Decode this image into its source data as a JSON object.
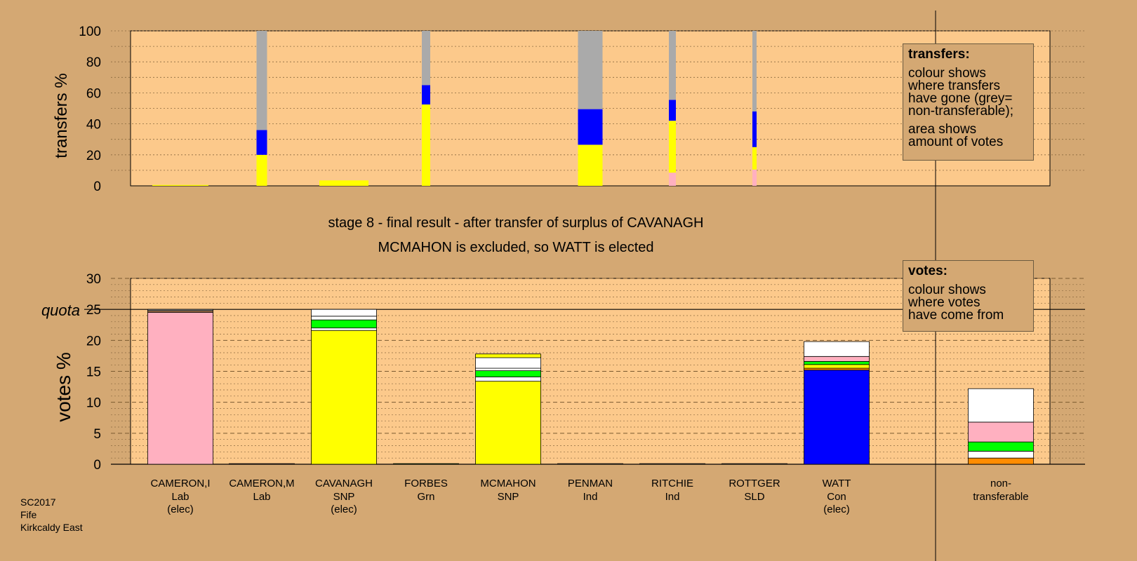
{
  "colors": {
    "background": "#d4a873",
    "plot_area": "#fcc98b",
    "yellow": "#ffff00",
    "pink": "#ffb0c0",
    "blue": "#0000ff",
    "green": "#00ff00",
    "white": "#ffffff",
    "grey": "#aaaaaa",
    "orange": "#ff8c00",
    "brown": "#a0704a"
  },
  "stage_title_line1": "stage 8 - final result - after transfer of surplus of CAVANAGH",
  "stage_title_line2": "MCMAHON is excluded, so WATT is elected",
  "transfers_legend": {
    "title": "transfers:",
    "line1": "colour shows\nwhere transfers\nhave gone (grey=\nnon-transferable);",
    "line2": "area shows\namount of votes"
  },
  "votes_legend": {
    "title": "votes:",
    "line1": "colour shows\nwhere votes\nhave come from"
  },
  "footer": {
    "line1": "SC2017",
    "line2": "Fife",
    "line3": "Kirkcaldy East"
  },
  "chart_data": [
    {
      "type": "bar",
      "stacked": true,
      "ylabel": "transfers %",
      "ylim": [
        0,
        100
      ],
      "yticks": [
        0,
        20,
        40,
        60,
        80,
        100
      ],
      "grid": true,
      "categories": [
        "CAMERON,I",
        "CAMERON,M",
        "CAVANAGH",
        "FORBES",
        "MCMAHON",
        "PENMAN",
        "RITCHIE",
        "ROTTGER",
        "WATT",
        "non-transferable"
      ],
      "bars": [
        {
          "category": "CAMERON,I",
          "width_votes_pct": 8,
          "segments": [
            {
              "color": "yellow",
              "value": 0.6
            }
          ]
        },
        {
          "category": "CAMERON,M",
          "width_votes_pct": 1.5,
          "segments": [
            {
              "color": "yellow",
              "value": 20
            },
            {
              "color": "blue",
              "value": 16
            },
            {
              "color": "grey",
              "value": 64
            }
          ]
        },
        {
          "category": "CAVANAGH",
          "width_votes_pct": 7,
          "segments": [
            {
              "color": "yellow",
              "value": 3.5
            }
          ]
        },
        {
          "category": "FORBES",
          "width_votes_pct": 1.2,
          "segments": [
            {
              "color": "yellow",
              "value": 52.5
            },
            {
              "color": "blue",
              "value": 12.5
            },
            {
              "color": "grey",
              "value": 35
            }
          ]
        },
        {
          "category": "PENMAN",
          "width_votes_pct": 3.5,
          "segments": [
            {
              "color": "yellow",
              "value": 26.5
            },
            {
              "color": "blue",
              "value": 23
            },
            {
              "color": "grey",
              "value": 50.5
            }
          ]
        },
        {
          "category": "RITCHIE",
          "width_votes_pct": 1,
          "segments": [
            {
              "color": "pink",
              "value": 8.5
            },
            {
              "color": "yellow",
              "value": 33.5
            },
            {
              "color": "blue",
              "value": 13.5
            },
            {
              "color": "grey",
              "value": 44.5
            }
          ]
        },
        {
          "category": "ROTTGER",
          "width_votes_pct": 0.6,
          "segments": [
            {
              "color": "pink",
              "value": 10.5
            },
            {
              "color": "yellow",
              "value": 14.5
            },
            {
              "color": "blue",
              "value": 23
            },
            {
              "color": "grey",
              "value": 52
            }
          ]
        }
      ]
    },
    {
      "type": "bar",
      "stacked": true,
      "ylabel": "votes %",
      "ylim": [
        0,
        30
      ],
      "yticks": [
        0,
        5,
        10,
        15,
        20,
        25,
        30
      ],
      "quota": 25,
      "quota_label": "quota",
      "grid": true,
      "candidates": [
        {
          "name": "CAMERON,I",
          "party": "Lab",
          "status": "(elec)",
          "segments": [
            {
              "color": "pink",
              "value": 24.5
            },
            {
              "color": "brown",
              "value": 0.3
            },
            {
              "color": "grey",
              "value": 0.2
            }
          ]
        },
        {
          "name": "CAMERON,M",
          "party": "Lab",
          "status": "",
          "segments": [
            {
              "color": "pink",
              "value": 0.1
            }
          ]
        },
        {
          "name": "CAVANAGH",
          "party": "SNP",
          "status": "(elec)",
          "segments": [
            {
              "color": "yellow",
              "value": 21.6
            },
            {
              "color": "white",
              "value": 0.4
            },
            {
              "color": "green",
              "value": 1.3
            },
            {
              "color": "white",
              "value": 0.6
            },
            {
              "color": "white",
              "value": 1.1
            }
          ]
        },
        {
          "name": "FORBES",
          "party": "Grn",
          "status": "",
          "segments": [
            {
              "color": "green",
              "value": 0.1
            }
          ]
        },
        {
          "name": "MCMAHON",
          "party": "SNP",
          "status": "",
          "segments": [
            {
              "color": "yellow",
              "value": 13.4
            },
            {
              "color": "white",
              "value": 0.7
            },
            {
              "color": "green",
              "value": 1
            },
            {
              "color": "white",
              "value": 0.4
            },
            {
              "color": "white",
              "value": 1.7
            },
            {
              "color": "yellow",
              "value": 0.6
            }
          ]
        },
        {
          "name": "PENMAN",
          "party": "Ind",
          "status": "",
          "segments": [
            {
              "color": "white",
              "value": 0.1
            }
          ]
        },
        {
          "name": "RITCHIE",
          "party": "Ind",
          "status": "",
          "segments": [
            {
              "color": "white",
              "value": 0.1
            }
          ]
        },
        {
          "name": "ROTTGER",
          "party": "SLD",
          "status": "",
          "segments": [
            {
              "color": "white",
              "value": 0.1
            }
          ]
        },
        {
          "name": "WATT",
          "party": "Con",
          "status": "(elec)",
          "segments": [
            {
              "color": "blue",
              "value": 15.2
            },
            {
              "color": "orange",
              "value": 0.3
            },
            {
              "color": "yellow",
              "value": 0.6
            },
            {
              "color": "green",
              "value": 0.5
            },
            {
              "color": "pink",
              "value": 0.8
            },
            {
              "color": "white",
              "value": 2.4
            }
          ]
        },
        {
          "name": "non-",
          "party": "transferable",
          "status": "",
          "segments": [
            {
              "color": "orange",
              "value": 1
            },
            {
              "color": "white",
              "value": 1.1
            },
            {
              "color": "green",
              "value": 1.5
            },
            {
              "color": "pink",
              "value": 3.2
            },
            {
              "color": "white",
              "value": 5.4
            }
          ]
        }
      ]
    }
  ]
}
